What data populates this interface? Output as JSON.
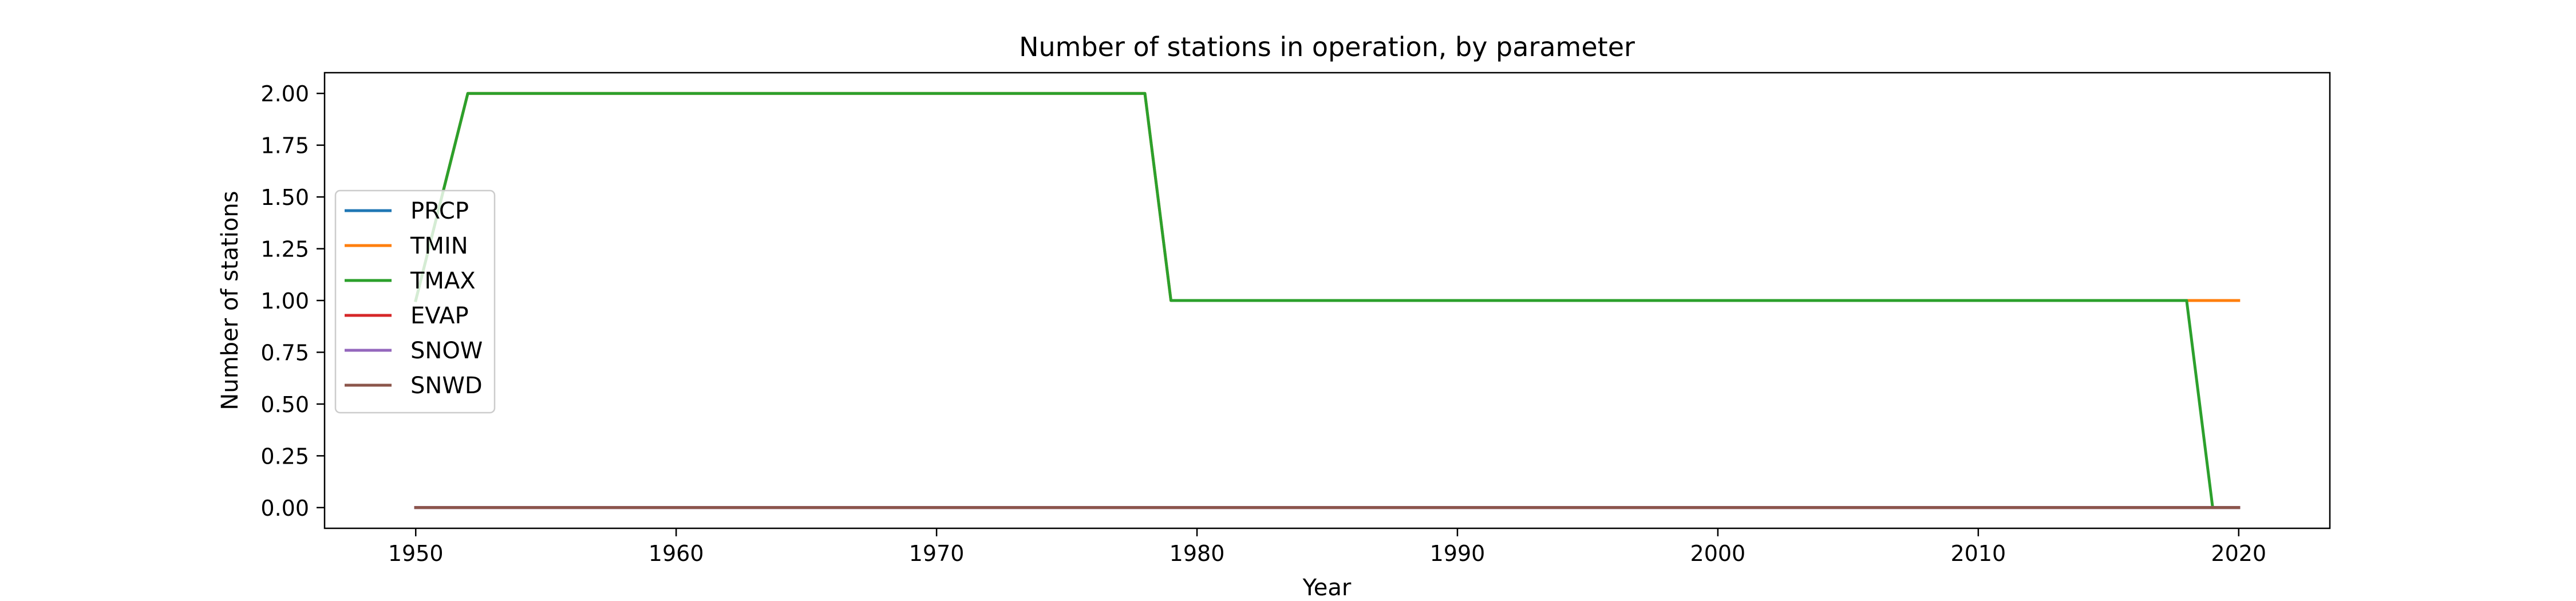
{
  "chart_data": {
    "type": "line",
    "title": "Number of stations in operation, by parameter",
    "xlabel": "Year",
    "ylabel": "Number of stations",
    "xlim": [
      1946.5,
      2023.5
    ],
    "ylim": [
      -0.1,
      2.1
    ],
    "xticks": [
      1950,
      1960,
      1970,
      1980,
      1990,
      2000,
      2010,
      2020
    ],
    "yticks": [
      "0.00",
      "0.25",
      "0.50",
      "0.75",
      "1.00",
      "1.25",
      "1.50",
      "1.75",
      "2.00"
    ],
    "grid": false,
    "legend_position": "center-left",
    "series": [
      {
        "name": "PRCP",
        "color": "#1f77b4",
        "points": [
          [
            1950,
            0
          ],
          [
            2020,
            0
          ]
        ]
      },
      {
        "name": "TMIN",
        "color": "#ff7f0e",
        "points": [
          [
            1950,
            1
          ],
          [
            1952,
            2
          ],
          [
            1978,
            2
          ],
          [
            1979,
            1
          ],
          [
            2020,
            1
          ]
        ]
      },
      {
        "name": "TMAX",
        "color": "#2ca02c",
        "points": [
          [
            1950,
            1
          ],
          [
            1952,
            2
          ],
          [
            1978,
            2
          ],
          [
            1979,
            1
          ],
          [
            2018,
            1
          ],
          [
            2019,
            0
          ],
          [
            2020,
            0
          ]
        ]
      },
      {
        "name": "EVAP",
        "color": "#d62728",
        "points": [
          [
            1950,
            0
          ],
          [
            2020,
            0
          ]
        ]
      },
      {
        "name": "SNOW",
        "color": "#9467bd",
        "points": [
          [
            1950,
            0
          ],
          [
            2020,
            0
          ]
        ]
      },
      {
        "name": "SNWD",
        "color": "#8c564b",
        "points": [
          [
            1950,
            0
          ],
          [
            2020,
            0
          ]
        ]
      }
    ]
  }
}
